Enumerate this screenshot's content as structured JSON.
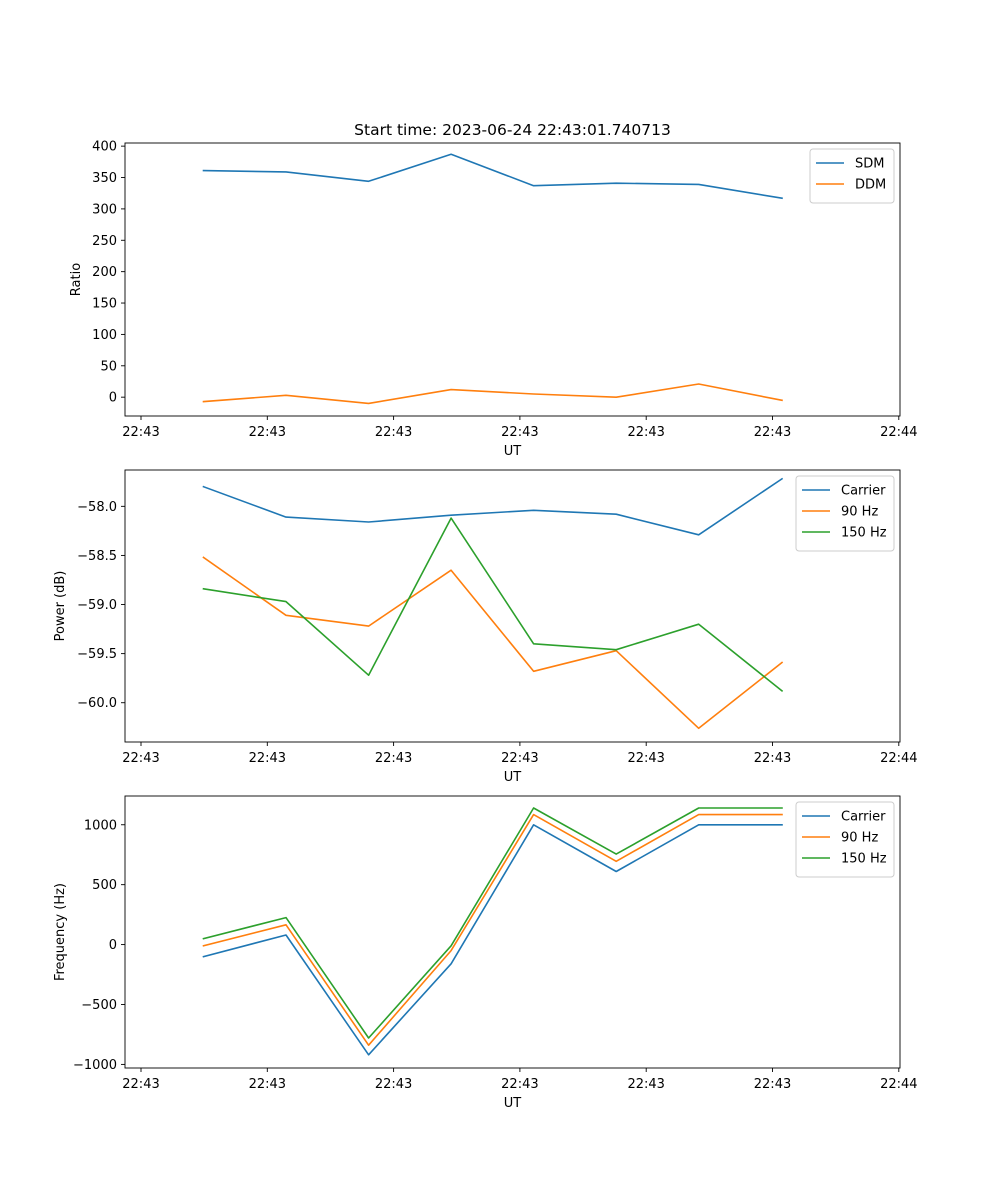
{
  "title": "Start time: 2023-06-24 22:43:01.740713",
  "chart_data": [
    {
      "type": "line",
      "xlabel": "UT",
      "ylabel": "Ratio",
      "x_ticklabels": [
        "22:43",
        "22:43",
        "22:43",
        "22:43",
        "22:43",
        "22:43",
        "22:44"
      ],
      "yticks": [
        0,
        50,
        100,
        150,
        200,
        250,
        300,
        350,
        400
      ],
      "ylim": [
        -30,
        405
      ],
      "legend_position": "top-right",
      "series": [
        {
          "name": "SDM",
          "color": "#1f77b4",
          "values": [
            361,
            359,
            344,
            387,
            337,
            341,
            339,
            317
          ]
        },
        {
          "name": "DDM",
          "color": "#ff7f0e",
          "values": [
            -7,
            3,
            -10,
            12,
            5,
            0,
            21,
            -5
          ]
        }
      ]
    },
    {
      "type": "line",
      "xlabel": "UT",
      "ylabel": "Power (dB)",
      "x_ticklabels": [
        "22:43",
        "22:43",
        "22:43",
        "22:43",
        "22:43",
        "22:43",
        "22:44"
      ],
      "yticks": [
        -58.0,
        -58.5,
        -59.0,
        -59.5,
        -60.0
      ],
      "ytick_labels": [
        "−58.0",
        "−58.5",
        "−59.0",
        "−59.5",
        "−60.0"
      ],
      "ylim": [
        -60.4,
        -57.63
      ],
      "legend_position": "top-right",
      "series": [
        {
          "name": "Carrier",
          "color": "#1f77b4",
          "values": [
            -57.8,
            -58.11,
            -58.16,
            -58.09,
            -58.04,
            -58.08,
            -58.29,
            -57.72
          ]
        },
        {
          "name": "90 Hz",
          "color": "#ff7f0e",
          "values": [
            -58.52,
            -59.11,
            -59.22,
            -58.65,
            -59.68,
            -59.47,
            -60.26,
            -59.59
          ]
        },
        {
          "name": "150 Hz",
          "color": "#2ca02c",
          "values": [
            -58.84,
            -58.97,
            -59.72,
            -58.12,
            -59.4,
            -59.46,
            -59.2,
            -59.88
          ]
        }
      ]
    },
    {
      "type": "line",
      "xlabel": "UT",
      "ylabel": "Frequency (Hz)",
      "x_ticklabels": [
        "22:43",
        "22:43",
        "22:43",
        "22:43",
        "22:43",
        "22:43",
        "22:44"
      ],
      "yticks": [
        1000,
        500,
        0,
        -500,
        -1000
      ],
      "ytick_labels": [
        "1000",
        "500",
        "0",
        "−500",
        "−1000"
      ],
      "ylim": [
        -1030,
        1240
      ],
      "legend_position": "top-right",
      "series": [
        {
          "name": "Carrier",
          "color": "#1f77b4",
          "values": [
            -100,
            80,
            -920,
            -160,
            1000,
            610,
            1000,
            1000
          ]
        },
        {
          "name": "90 Hz",
          "color": "#ff7f0e",
          "values": [
            -10,
            165,
            -840,
            -50,
            1085,
            695,
            1085,
            1085
          ]
        },
        {
          "name": "150 Hz",
          "color": "#2ca02c",
          "values": [
            50,
            225,
            -780,
            -10,
            1140,
            755,
            1140,
            1140
          ]
        }
      ]
    }
  ]
}
